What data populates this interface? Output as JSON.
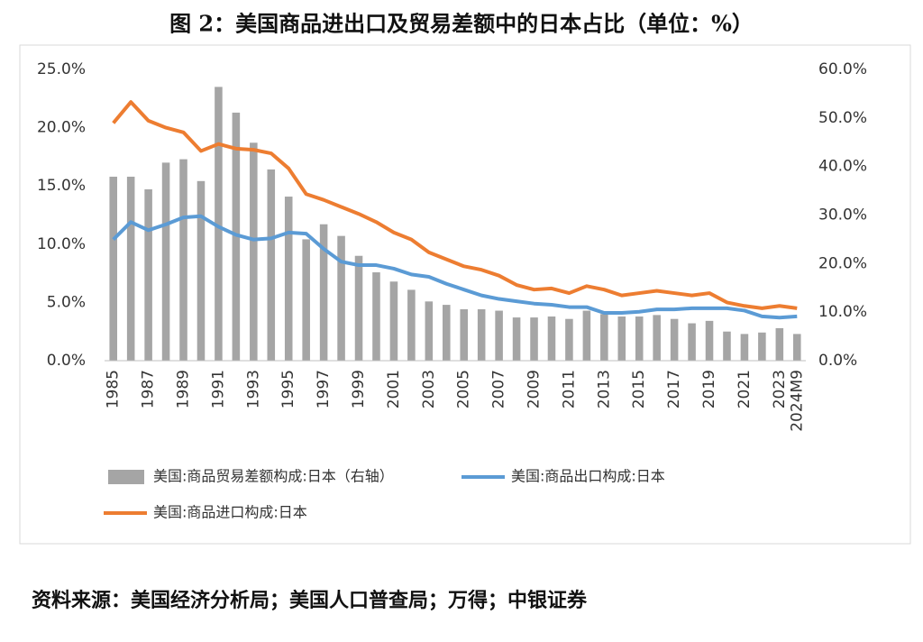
{
  "title": "图 2：美国商品进出口及贸易差额中的日本占比（单位：%）",
  "source": "资料来源：美国经济分析局；美国人口普查局；万得；中银证券",
  "chart_data": {
    "type": "bar-line",
    "categories": [
      "1985",
      null,
      "1987",
      null,
      "1989",
      null,
      "1991",
      null,
      "1993",
      null,
      "1995",
      null,
      "1997",
      null,
      "1999",
      null,
      "2001",
      null,
      "2003",
      null,
      "2005",
      null,
      "2007",
      null,
      "2009",
      null,
      "2011",
      null,
      "2013",
      null,
      "2015",
      null,
      "2017",
      null,
      "2019",
      null,
      "2021",
      null,
      "2023",
      "2024M9"
    ],
    "series": [
      {
        "name": "美国:商品贸易差额构成:日本（右轴）",
        "type": "bar",
        "axis": "y2",
        "color": "#a5a5a5",
        "values": [
          37.9,
          37.9,
          35.3,
          40.8,
          41.5,
          37.0,
          56.4,
          51.1,
          44.9,
          39.4,
          33.8,
          25.0,
          28.1,
          25.7,
          21.6,
          18.2,
          16.3,
          14.6,
          12.2,
          11.5,
          10.6,
          10.6,
          10.3,
          8.9,
          8.9,
          9.1,
          8.6,
          10.3,
          9.6,
          9.1,
          9.1,
          9.4,
          8.6,
          7.7,
          8.2,
          6.0,
          5.5,
          5.8,
          6.7,
          5.5
        ]
      },
      {
        "name": "美国:商品出口构成:日本",
        "type": "line",
        "color": "#5b9bd5",
        "values": [
          10.4,
          11.9,
          11.2,
          11.7,
          12.3,
          12.4,
          11.5,
          10.8,
          10.4,
          10.5,
          11.0,
          10.9,
          9.6,
          8.5,
          8.2,
          8.2,
          7.9,
          7.4,
          7.2,
          6.6,
          6.1,
          5.6,
          5.3,
          5.1,
          4.9,
          4.8,
          4.6,
          4.6,
          4.1,
          4.1,
          4.2,
          4.4,
          4.4,
          4.5,
          4.5,
          4.5,
          4.3,
          3.8,
          3.7,
          3.8
        ]
      },
      {
        "name": "美国:商品进口构成:日本",
        "type": "line",
        "color": "#ed7d31",
        "values": [
          20.4,
          22.2,
          20.6,
          20.0,
          19.6,
          18.0,
          18.6,
          18.2,
          18.1,
          17.8,
          16.5,
          14.3,
          13.8,
          13.2,
          12.6,
          11.9,
          11.0,
          10.4,
          9.3,
          8.7,
          8.1,
          7.8,
          7.3,
          6.5,
          6.1,
          6.2,
          5.8,
          6.4,
          6.1,
          5.6,
          5.8,
          6.0,
          5.8,
          5.6,
          5.8,
          5.0,
          4.7,
          4.5,
          4.7,
          4.5
        ]
      }
    ],
    "ylim": [
      0,
      25
    ],
    "yticks": [
      {
        "value": 0,
        "label": "0.0%"
      },
      {
        "value": 5,
        "label": "5.0%"
      },
      {
        "value": 10,
        "label": "10.0%"
      },
      {
        "value": 15,
        "label": "15.0%"
      },
      {
        "value": 20,
        "label": "20.0%"
      },
      {
        "value": 25,
        "label": "25.0%"
      }
    ],
    "y2lim": [
      0,
      60
    ],
    "y2ticks": [
      {
        "value": 0,
        "label": "0.0%"
      },
      {
        "value": 10,
        "label": "10.0%"
      },
      {
        "value": 20,
        "label": "20.0%"
      },
      {
        "value": 30,
        "label": "30.0%"
      },
      {
        "value": 40,
        "label": "40.0%"
      },
      {
        "value": 50,
        "label": "50.0%"
      },
      {
        "value": 60,
        "label": "60.0%"
      }
    ],
    "grid": false,
    "legend": "bottom"
  }
}
